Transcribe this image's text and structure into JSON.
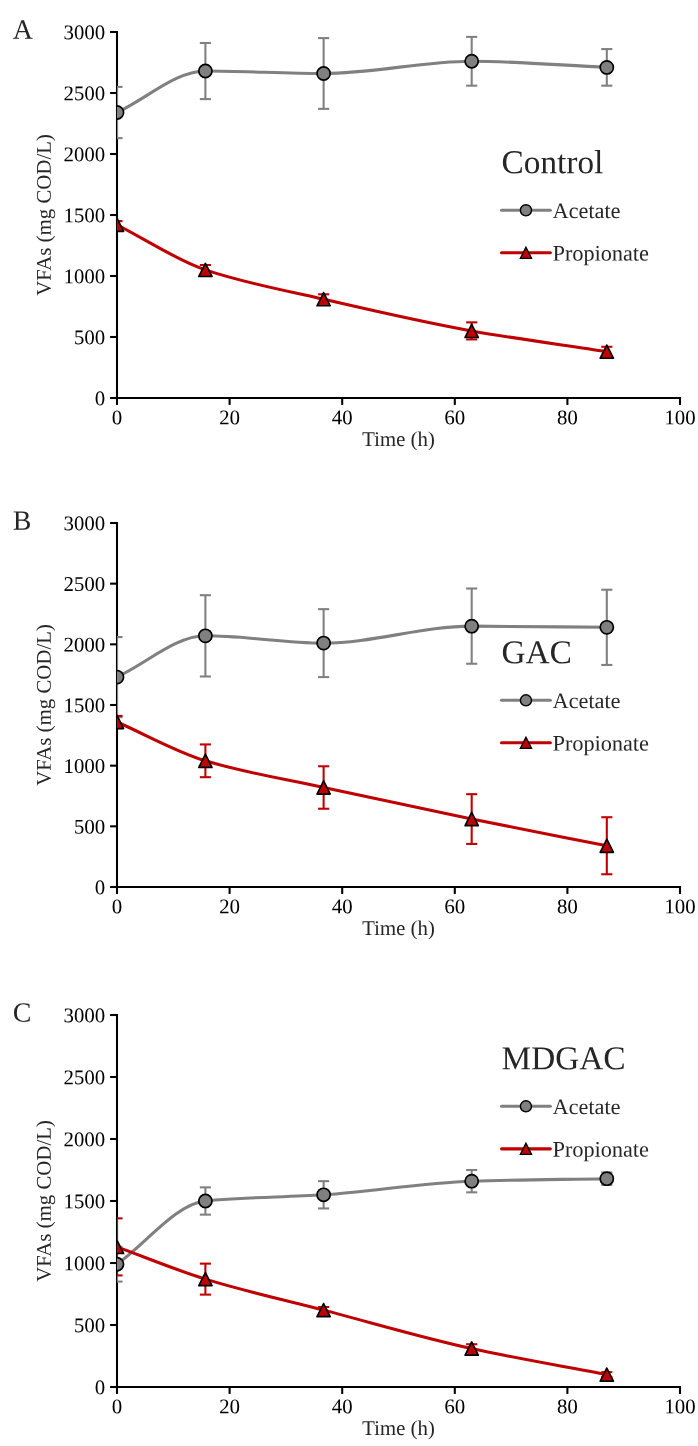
{
  "chart_data": [
    {
      "type": "line",
      "title": "A",
      "legend_title": "Control",
      "xlabel": "Time (h)",
      "ylabel": "VFAs (mg COD/L)",
      "x": [
        0,
        15.7,
        36.7,
        63,
        87
      ],
      "xlim": [
        0,
        100
      ],
      "xticks": [
        0,
        20,
        40,
        60,
        80,
        100
      ],
      "ylim": [
        0,
        3000
      ],
      "yticks": [
        0,
        500,
        1000,
        1500,
        2000,
        2500,
        3000
      ],
      "grid": false,
      "legend": "right",
      "series": [
        {
          "name": "Acetate",
          "color": "#808080",
          "marker": "circle",
          "values": [
            2340,
            2680,
            2660,
            2760,
            2710
          ],
          "errors": [
            210,
            230,
            290,
            200,
            150
          ]
        },
        {
          "name": "Propionate",
          "color": "#c00000",
          "marker": "triangle",
          "values": [
            1420,
            1050,
            810,
            550,
            380
          ],
          "errors": [
            30,
            40,
            40,
            70,
            40
          ]
        }
      ]
    },
    {
      "type": "line",
      "title": "B",
      "legend_title": "GAC",
      "xlabel": "Time (h)",
      "ylabel": "VFAs (mg COD/L)",
      "x": [
        0,
        15.7,
        36.7,
        63,
        87
      ],
      "xlim": [
        0,
        100
      ],
      "xticks": [
        0,
        20,
        40,
        60,
        80,
        100
      ],
      "ylim": [
        0,
        3000
      ],
      "yticks": [
        0,
        500,
        1000,
        1500,
        2000,
        2500,
        3000
      ],
      "grid": false,
      "legend": "right",
      "series": [
        {
          "name": "Acetate",
          "color": "#808080",
          "marker": "circle",
          "values": [
            1730,
            2070,
            2010,
            2150,
            2140
          ],
          "errors": [
            330,
            335,
            280,
            310,
            310
          ]
        },
        {
          "name": "Propionate",
          "color": "#c00000",
          "marker": "triangle",
          "values": [
            1360,
            1040,
            820,
            560,
            340
          ],
          "errors": [
            50,
            135,
            175,
            205,
            235
          ]
        }
      ]
    },
    {
      "type": "line",
      "title": "C",
      "legend_title": "MDGAC",
      "xlabel": "Time (h)",
      "ylabel": "VFAs (mg COD/L)",
      "x": [
        0,
        15.7,
        36.7,
        63,
        87
      ],
      "xlim": [
        0,
        100
      ],
      "xticks": [
        0,
        20,
        40,
        60,
        80,
        100
      ],
      "ylim": [
        0,
        3000
      ],
      "yticks": [
        0,
        500,
        1000,
        1500,
        2000,
        2500,
        3000
      ],
      "grid": false,
      "legend": "top right",
      "series": [
        {
          "name": "Acetate",
          "color": "#808080",
          "marker": "circle",
          "values": [
            990,
            1500,
            1550,
            1660,
            1680
          ],
          "errors": [
            140,
            110,
            110,
            90,
            50
          ]
        },
        {
          "name": "Propionate",
          "color": "#c00000",
          "marker": "triangle",
          "values": [
            1130,
            870,
            620,
            310,
            100
          ],
          "errors": [
            230,
            125,
            25,
            35,
            20
          ]
        }
      ]
    }
  ]
}
